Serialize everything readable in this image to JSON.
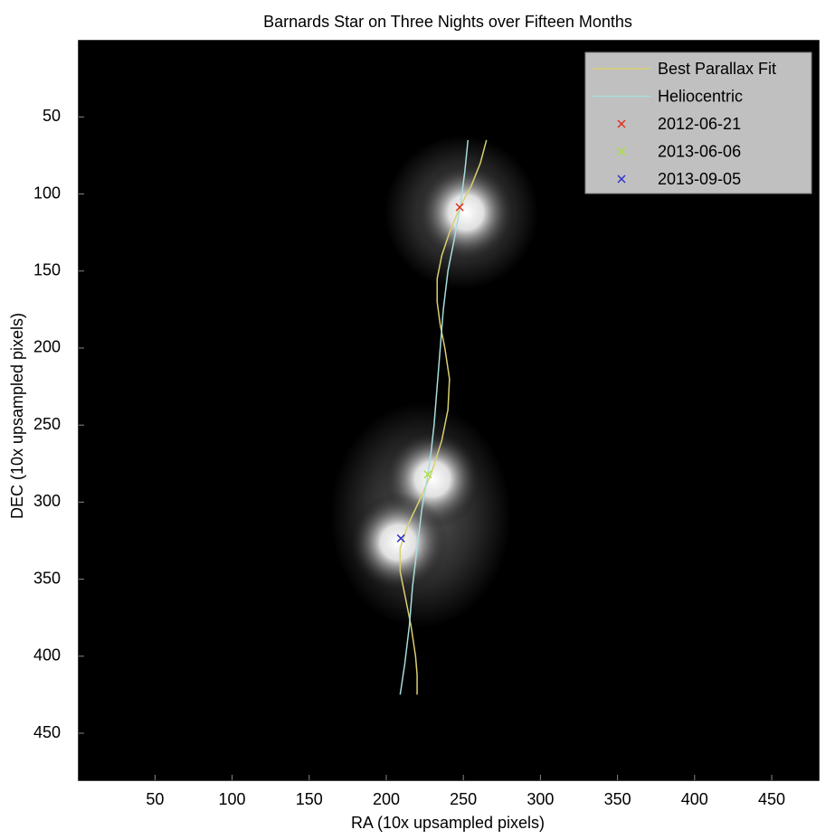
{
  "chart_data": {
    "type": "line",
    "title": "Barnards Star on Three Nights over Fifteen Months",
    "x_label": "RA   (10x upsampled pixels)",
    "y_label": "DEC   (10x upsampled pixels)",
    "xlim": [
      0.5,
      480.5
    ],
    "ylim": [
      480.5,
      0.5
    ],
    "xticks": [
      50,
      100,
      150,
      200,
      250,
      300,
      350,
      400,
      450
    ],
    "yticks": [
      50,
      100,
      150,
      200,
      250,
      300,
      350,
      400,
      450
    ],
    "legend": "upper right",
    "series": [
      {
        "name": "Best Parallax Fit",
        "color": "#d8d070",
        "style": "line",
        "x": [
          265,
          261,
          255,
          248,
          241,
          236,
          233,
          233,
          235,
          238,
          241,
          240,
          236,
          229,
          221,
          214,
          209,
          209,
          212,
          216,
          219,
          220,
          220
        ],
        "y": [
          65,
          80,
          95,
          108,
          125,
          140,
          155,
          170,
          185,
          200,
          220,
          240,
          260,
          282,
          300,
          315,
          330,
          345,
          360,
          380,
          400,
          412,
          425
        ]
      },
      {
        "name": "Heliocentric",
        "color": "#a8dcdc",
        "style": "line",
        "x": [
          253,
          251,
          248,
          244,
          240,
          237,
          235,
          233,
          231,
          229,
          227,
          223,
          220,
          217,
          215,
          212,
          209
        ],
        "y": [
          65,
          85,
          108,
          130,
          150,
          175,
          200,
          225,
          250,
          268,
          282,
          305,
          330,
          355,
          380,
          405,
          425
        ]
      },
      {
        "name": "2012-06-21",
        "color": "#e03020",
        "style": "marker",
        "x": [
          247.6
        ],
        "y": [
          108.6
        ]
      },
      {
        "name": "2013-06-06",
        "color": "#a8e040",
        "style": "marker",
        "x": [
          227
        ],
        "y": [
          282
        ]
      },
      {
        "name": "2013-09-05",
        "color": "#3030c8",
        "style": "marker",
        "x": [
          209.5
        ],
        "y": [
          323.5
        ]
      }
    ]
  }
}
